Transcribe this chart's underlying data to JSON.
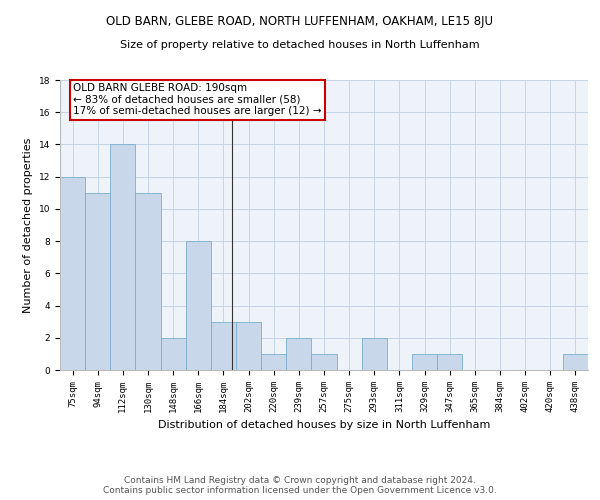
{
  "title": "OLD BARN, GLEBE ROAD, NORTH LUFFENHAM, OAKHAM, LE15 8JU",
  "subtitle": "Size of property relative to detached houses in North Luffenham",
  "xlabel": "Distribution of detached houses by size in North Luffenham",
  "ylabel": "Number of detached properties",
  "categories": [
    "75sqm",
    "94sqm",
    "112sqm",
    "130sqm",
    "148sqm",
    "166sqm",
    "184sqm",
    "202sqm",
    "220sqm",
    "239sqm",
    "257sqm",
    "275sqm",
    "293sqm",
    "311sqm",
    "329sqm",
    "347sqm",
    "365sqm",
    "384sqm",
    "402sqm",
    "420sqm",
    "438sqm"
  ],
  "values": [
    12,
    11,
    14,
    11,
    2,
    8,
    3,
    3,
    1,
    2,
    1,
    0,
    2,
    0,
    1,
    1,
    0,
    0,
    0,
    0,
    1
  ],
  "bar_color": "#c8d8ea",
  "bar_edge_color": "#7aadcc",
  "annotation_box_text": "OLD BARN GLEBE ROAD: 190sqm\n← 83% of detached houses are smaller (58)\n17% of semi-detached houses are larger (12) →",
  "annotation_box_color": "#ffffff",
  "annotation_box_edge_color": "#cc0000",
  "vline_color": "#333333",
  "grid_color": "#c5d5e5",
  "background_color": "#eef3fa",
  "ylim": [
    0,
    18
  ],
  "yticks": [
    0,
    2,
    4,
    6,
    8,
    10,
    12,
    14,
    16,
    18
  ],
  "footer_line1": "Contains HM Land Registry data © Crown copyright and database right 2024.",
  "footer_line2": "Contains public sector information licensed under the Open Government Licence v3.0.",
  "title_fontsize": 8.5,
  "subtitle_fontsize": 8,
  "axis_label_fontsize": 8,
  "tick_fontsize": 6.5,
  "annotation_fontsize": 7.5,
  "footer_fontsize": 6.5
}
